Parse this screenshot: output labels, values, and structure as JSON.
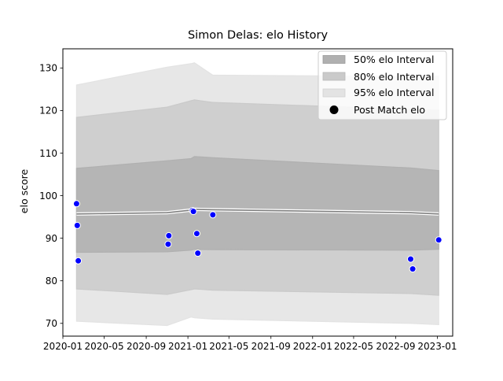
{
  "chart_data": {
    "type": "line",
    "title": "Simon Delas: elo History",
    "xlabel": "",
    "ylabel": "elo score",
    "xlim": [
      "2020-01-01",
      "2023-02-15"
    ],
    "ylim": [
      67,
      134.5
    ],
    "x_ticks": [
      "2020-01",
      "2020-05",
      "2020-09",
      "2021-01",
      "2021-05",
      "2021-09",
      "2022-01",
      "2022-05",
      "2022-09",
      "2023-01"
    ],
    "y_ticks": [
      70,
      80,
      90,
      100,
      110,
      120,
      130
    ],
    "grid": false,
    "legend_position": "top-right",
    "legend": [
      {
        "label": "50% elo Interval",
        "kind": "patch",
        "color": "#b0b0b0"
      },
      {
        "label": "80% elo Interval",
        "kind": "patch",
        "color": "#cacaca"
      },
      {
        "label": "95% elo Interval",
        "kind": "patch",
        "color": "#e3e3e3"
      },
      {
        "label": "Post Match elo",
        "kind": "marker",
        "color": "#000000"
      }
    ],
    "colors": {
      "band_50": "#b0b0b0",
      "band_80": "#cacaca",
      "band_95": "#e3e3e3",
      "mean_line": "#808080",
      "points": "#0000ff",
      "point_edge": "#ffffff"
    },
    "bands": {
      "x": [
        "2020-02-10",
        "2020-11-01",
        "2021-01-10",
        "2021-01-20",
        "2021-03-15",
        "2021-03-16",
        "2022-10-15",
        "2023-01-05"
      ],
      "median": [
        95.7,
        96.0,
        96.6,
        96.8,
        96.7,
        96.7,
        96.0,
        95.7
      ],
      "band_50": {
        "upper": [
          106.4,
          108.2,
          108.7,
          109.2,
          108.9,
          108.9,
          106.5,
          105.9
        ],
        "lower": [
          86.7,
          86.8,
          87.2,
          87.4,
          87.3,
          87.3,
          87.2,
          87.4
        ]
      },
      "band_80": {
        "upper": [
          118.4,
          120.8,
          122.3,
          122.5,
          121.9,
          121.9,
          120.3,
          120.1
        ],
        "lower": [
          78.1,
          76.8,
          77.9,
          78.1,
          77.8,
          77.8,
          77.0,
          76.6
        ]
      },
      "band_95": {
        "upper": [
          126.0,
          130.2,
          131.0,
          131.2,
          128.3,
          128.3,
          128.0,
          128.1
        ],
        "lower": [
          70.5,
          69.5,
          71.5,
          71.3,
          71.0,
          71.0,
          70.0,
          69.7
        ]
      }
    },
    "series": [
      {
        "name": "Post Match elo",
        "points": [
          {
            "x": "2020-02-10",
            "y": 98.1
          },
          {
            "x": "2020-02-12",
            "y": 93.0
          },
          {
            "x": "2020-02-15",
            "y": 84.7
          },
          {
            "x": "2020-11-04",
            "y": 88.6
          },
          {
            "x": "2020-11-06",
            "y": 90.6
          },
          {
            "x": "2021-01-14",
            "y": 96.5
          },
          {
            "x": "2021-01-17",
            "y": 96.3
          },
          {
            "x": "2021-01-27",
            "y": 91.1
          },
          {
            "x": "2021-01-30",
            "y": 86.5
          },
          {
            "x": "2021-03-15",
            "y": 95.5
          },
          {
            "x": "2022-10-15",
            "y": 85.1
          },
          {
            "x": "2022-10-21",
            "y": 82.8
          },
          {
            "x": "2023-01-05",
            "y": 89.6
          }
        ]
      }
    ]
  }
}
